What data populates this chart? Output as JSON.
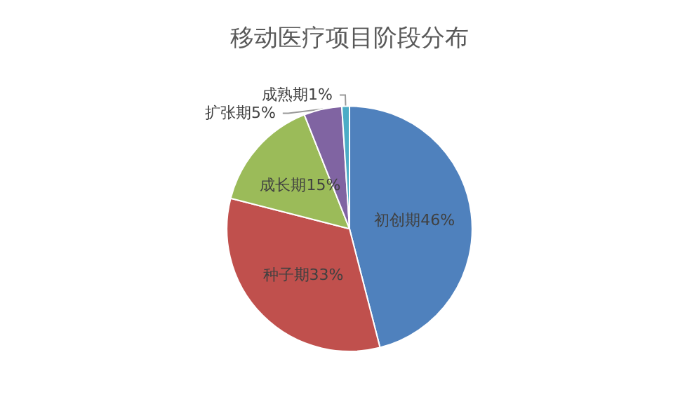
{
  "chart_data": {
    "type": "pie",
    "title": "移动医疗项目阶段分布",
    "categories": [
      "初创期",
      "种子期",
      "成长期",
      "扩张期",
      "成熟期"
    ],
    "values": [
      46,
      33,
      15,
      5,
      1
    ],
    "value_labels": [
      "46%",
      "33%",
      "15%",
      "5%",
      "1%"
    ],
    "colors": [
      "#4f81bd",
      "#c0504d",
      "#9bbb59",
      "#8064a2",
      "#4bacc6"
    ],
    "legend": false
  }
}
